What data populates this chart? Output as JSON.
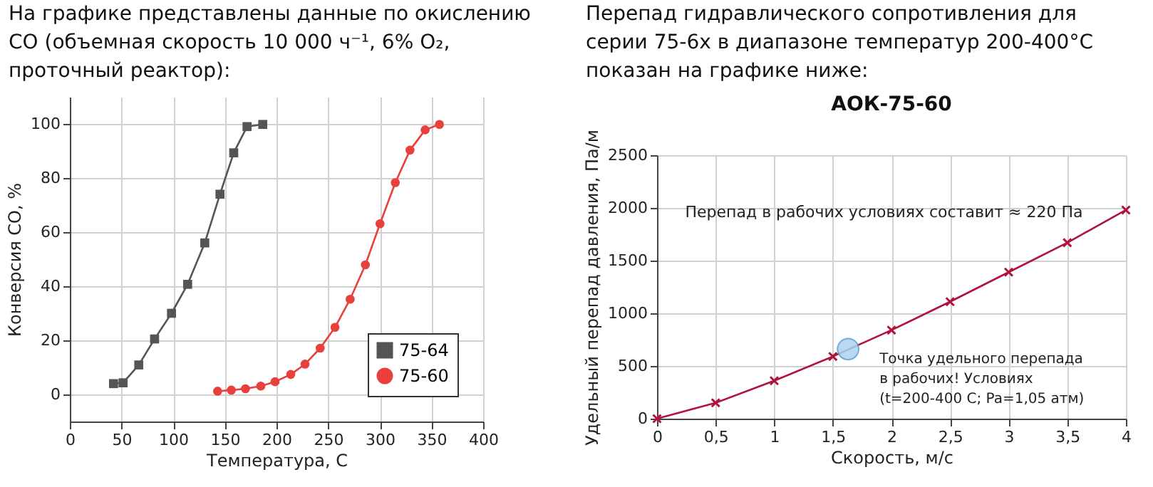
{
  "chart_data": [
    {
      "type": "line",
      "title": "На графике представлены данные по окислению CO (объемная скорость 10 000 ч⁻¹, 6% O₂, проточный реактор):",
      "xlabel": "Температура, С",
      "ylabel": "Конверсия CO, %",
      "xlim": [
        0,
        400
      ],
      "xticks": [
        0,
        50,
        100,
        150,
        200,
        250,
        300,
        350,
        400
      ],
      "ylim": [
        -10,
        110
      ],
      "yticks": [
        0,
        20,
        40,
        60,
        80,
        100
      ],
      "grid": true,
      "legend": "bottom right",
      "series": [
        {
          "name": "75-64",
          "color": "#555555",
          "marker": "square",
          "x": [
            42.3,
            51.5,
            66.7,
            82,
            98.4,
            114,
            130.6,
            145.3,
            158.6,
            171.5,
            186.7
          ],
          "values": [
            4,
            4.3,
            10.9,
            20.5,
            30,
            40.7,
            56,
            74,
            89.3,
            99,
            99.8
          ]
        },
        {
          "name": "75-60",
          "color": "#e8403a",
          "marker": "circle",
          "x": [
            143,
            156.3,
            170,
            184.8,
            198.6,
            213.8,
            227.6,
            242.3,
            256.6,
            271.3,
            286,
            300.2,
            315,
            329.2,
            343.9,
            357.7
          ],
          "values": [
            1.2,
            1.6,
            2.1,
            3.1,
            4.7,
            7.4,
            11.2,
            17.1,
            24.8,
            35.2,
            47.9,
            63.1,
            78.3,
            90.3,
            97.8,
            99.8
          ]
        }
      ]
    },
    {
      "type": "line",
      "title": "Перепад гидравлического сопротивления для серии 75-6х в диапазоне температур 200-400°C показан на графике ниже:",
      "subtitle": "АОК-75-60",
      "xlabel": "Скорость, м/с",
      "ylabel": "Удельный перепад давления, Па/м",
      "xlim": [
        0,
        4
      ],
      "xticks": [
        0,
        {
          "value": 0.5,
          "label": "0,5"
        },
        1,
        {
          "value": 1.5,
          "label": "1,5"
        },
        2,
        {
          "value": 2.5,
          "label": "2,5"
        },
        3,
        {
          "value": 3.5,
          "label": "3,5"
        },
        4
      ],
      "ylim": [
        0,
        2500
      ],
      "yticks": [
        0,
        500,
        1000,
        1500,
        2000,
        2500
      ],
      "grid": true,
      "annotations": [
        "Перепад в рабочих условиях составит ≈ 220 Па",
        {
          "text": "Точка удельного перепада\nв рабочих! Условиях\n(t=200-400 C; Pa=1,05 атм)",
          "x": 1.63,
          "y": 660
        }
      ],
      "series": [
        {
          "color": "#b0143c",
          "marker": "cross",
          "x": [
            0,
            0.5,
            1,
            1.5,
            2,
            2.5,
            3,
            3.5,
            4
          ],
          "values": [
            0,
            150,
            360,
            590,
            840,
            1110,
            1390,
            1670,
            1980
          ]
        },
        {
          "type": "scatter",
          "color": "#a9d4f0",
          "marker": "circle",
          "x": [
            1.63
          ],
          "values": [
            660
          ]
        }
      ]
    }
  ]
}
